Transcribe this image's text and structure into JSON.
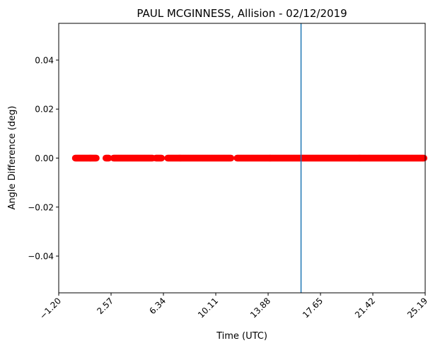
{
  "chart_data": {
    "type": "scatter",
    "title": "PAUL MCGINNESS, Allision - 02/12/2019",
    "xlabel": "Time (UTC)",
    "ylabel": "Angle Difference (deg)",
    "xlim": [
      -1.2,
      25.19
    ],
    "ylim": [
      -0.055,
      0.055
    ],
    "x_ticks": [
      "-1.20",
      "2.57",
      "6.34",
      "10.11",
      "13.88",
      "17.65",
      "21.42",
      "25.19"
    ],
    "x_tick_values": [
      -1.2,
      2.57,
      6.34,
      10.11,
      13.88,
      17.65,
      21.42,
      25.19
    ],
    "y_ticks": [
      "0.04",
      "0.02",
      "0.00",
      "−0.02",
      "−0.04"
    ],
    "y_tick_values": [
      0.04,
      0.02,
      0.0,
      -0.02,
      -0.04
    ],
    "series": [
      {
        "color": "#ff0000",
        "y": 0.0,
        "x_segments": [
          [
            0.0,
            1.5
          ],
          [
            2.2,
            2.4
          ],
          [
            2.75,
            5.55
          ],
          [
            5.8,
            6.2
          ],
          [
            6.65,
            11.2
          ],
          [
            11.65,
            25.1
          ]
        ]
      }
    ],
    "vline": {
      "x": 16.25,
      "color": "#1f77b4"
    },
    "grid": false,
    "legend": false
  }
}
